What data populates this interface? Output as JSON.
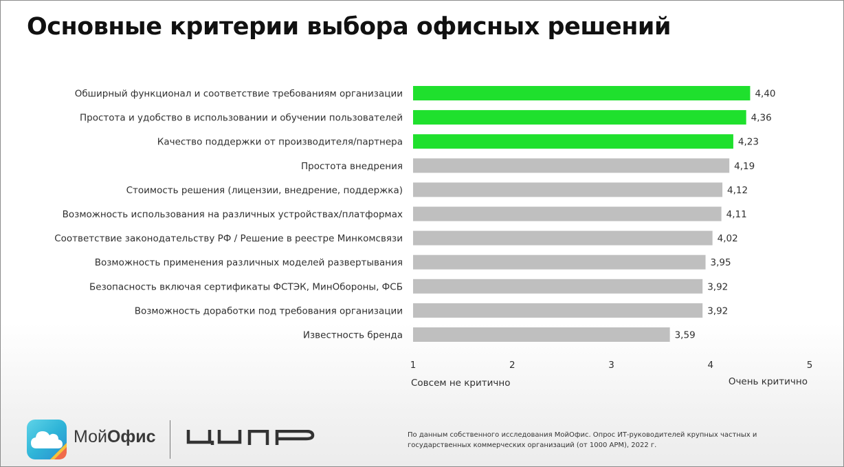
{
  "title": "Основные критерии выбора офисных решений",
  "colors": {
    "highlight": "#1fe02d",
    "normal": "#bfbfbf"
  },
  "chart_data": {
    "type": "bar",
    "orientation": "horizontal",
    "categories": [
      "Обширный функционал и соответствие требованиям организации",
      "Простота и удобство в использовании и обучении пользователей",
      "Качество поддержки от производителя/партнера",
      "Простота внедрения",
      "Стоимость решения (лицензии, внедрение, поддержка)",
      "Возможность использования на различных устройствах/платформах",
      "Соответствие законодательству РФ / Решение в реестре Минкомсвязи",
      "Возможность применения различных моделей развертывания",
      "Безопасность включая сертификаты ФСТЭК, МинОбороны, ФСБ",
      "Возможность доработки под требования организации",
      "Известность бренда"
    ],
    "values": [
      4.4,
      4.36,
      4.23,
      4.19,
      4.12,
      4.11,
      4.02,
      3.95,
      3.92,
      3.92,
      3.59
    ],
    "value_labels": [
      "4,40",
      "4,36",
      "4,23",
      "4,19",
      "4,12",
      "4,11",
      "4,02",
      "3,95",
      "3,92",
      "3,92",
      "3,59"
    ],
    "highlighted": [
      true,
      true,
      true,
      false,
      false,
      false,
      false,
      false,
      false,
      false,
      false
    ],
    "xlim": [
      1,
      5
    ],
    "xticks": [
      "1",
      "2",
      "3",
      "4",
      "5"
    ],
    "x_low_label": "Совсем не критично",
    "x_high_label": "Очень критично",
    "grid": false
  },
  "footer": {
    "brand_regular": "Мой",
    "brand_bold": "Офис",
    "partner_logo": "ЦИПР",
    "source": "По данным собственного исследования МойОфис. Опрос ИТ-руководителей крупных частных и государственных коммерческих организаций (от 1000 АРМ), 2022 г."
  }
}
